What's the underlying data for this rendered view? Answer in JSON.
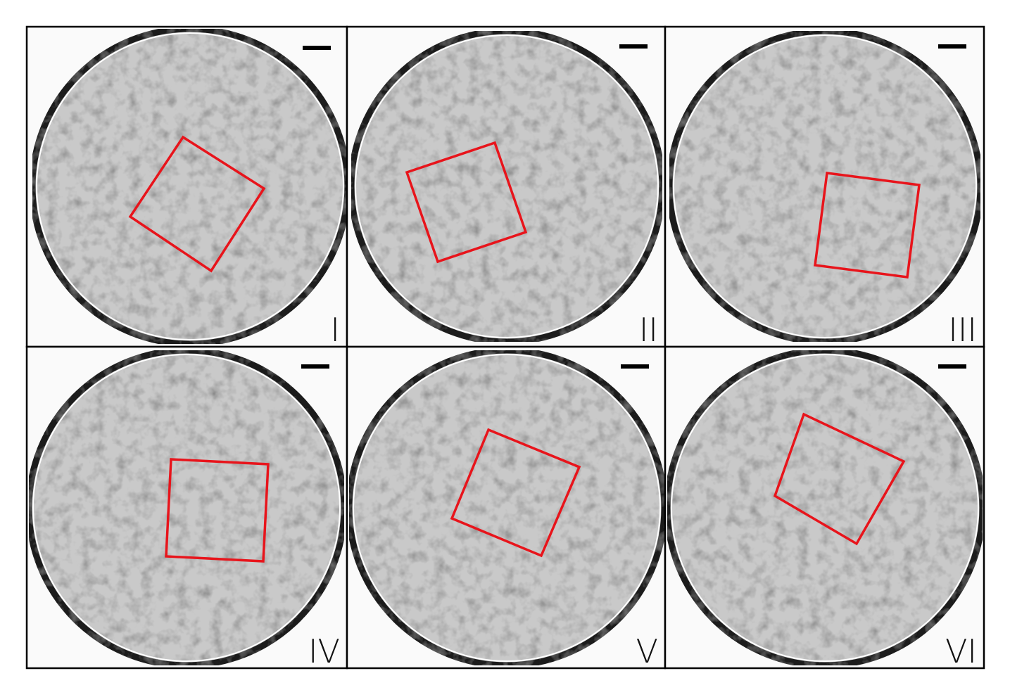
{
  "panels": [
    {
      "label": "I"
    },
    {
      "label": "II"
    },
    {
      "label": "III"
    },
    {
      "label": "IV"
    },
    {
      "label": "V"
    },
    {
      "label": "VI"
    }
  ]
}
